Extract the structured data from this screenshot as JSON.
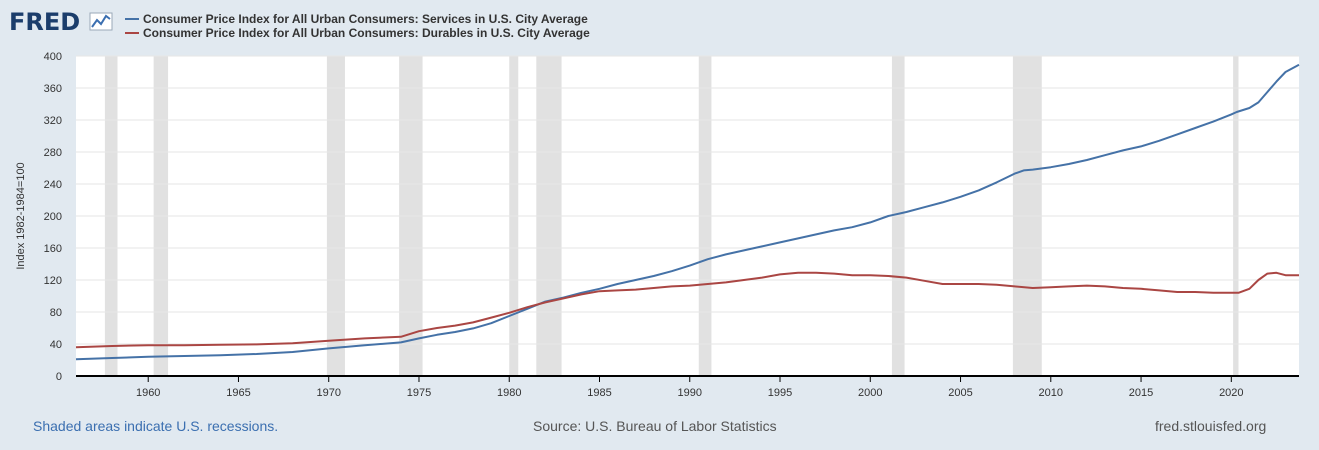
{
  "brand": {
    "name": "FRED",
    "chart_icon": "line-chart-icon"
  },
  "colors": {
    "background": "#e1e9f0",
    "plot_background": "#ffffff",
    "recession_band": "#e1e1e1",
    "gridline": "#e6e6e6",
    "series_services": "#4572a7",
    "series_durables": "#aa4643"
  },
  "footer": {
    "recession_note": "Shaded areas indicate U.S. recessions.",
    "source": "Source: U.S. Bureau of Labor Statistics",
    "url": "fred.stlouisfed.org"
  },
  "chart_data": {
    "type": "line",
    "title": "",
    "xlabel": "",
    "ylabel": "Index 1982-1984=100",
    "xlim": [
      1956,
      2023.75
    ],
    "ylim": [
      0,
      400
    ],
    "x_ticks": [
      1960,
      1965,
      1970,
      1975,
      1980,
      1985,
      1990,
      1995,
      2000,
      2005,
      2010,
      2015,
      2020
    ],
    "y_ticks": [
      0,
      40,
      80,
      120,
      160,
      200,
      240,
      280,
      320,
      360,
      400
    ],
    "grid": true,
    "legend_position": "top-left",
    "recessions": [
      [
        1957.6,
        1958.3
      ],
      [
        1960.3,
        1961.1
      ],
      [
        1969.9,
        1970.9
      ],
      [
        1973.9,
        1975.2
      ],
      [
        1980.0,
        1980.5
      ],
      [
        1981.5,
        1982.9
      ],
      [
        1990.5,
        1991.2
      ],
      [
        2001.2,
        2001.9
      ],
      [
        2007.9,
        2009.5
      ],
      [
        2020.1,
        2020.4
      ]
    ],
    "series": [
      {
        "name": "Consumer Price Index for All Urban Consumers: Services in U.S. City Average",
        "color": "#4572a7",
        "points": [
          [
            1956,
            21
          ],
          [
            1958,
            22.5
          ],
          [
            1960,
            24
          ],
          [
            1962,
            25
          ],
          [
            1964,
            26
          ],
          [
            1966,
            27.5
          ],
          [
            1968,
            30
          ],
          [
            1970,
            34.5
          ],
          [
            1972,
            38.5
          ],
          [
            1974,
            42
          ],
          [
            1975,
            47
          ],
          [
            1976,
            51.5
          ],
          [
            1977,
            55
          ],
          [
            1978,
            59.5
          ],
          [
            1979,
            66
          ],
          [
            1980,
            75
          ],
          [
            1981,
            84
          ],
          [
            1982,
            93
          ],
          [
            1983,
            98
          ],
          [
            1984,
            104
          ],
          [
            1985,
            109
          ],
          [
            1986,
            115
          ],
          [
            1987,
            120
          ],
          [
            1988,
            125
          ],
          [
            1989,
            131
          ],
          [
            1990,
            138
          ],
          [
            1991,
            146
          ],
          [
            1992,
            152
          ],
          [
            1993,
            157
          ],
          [
            1994,
            162
          ],
          [
            1995,
            167
          ],
          [
            1996,
            172
          ],
          [
            1997,
            177
          ],
          [
            1998,
            182
          ],
          [
            1999,
            186
          ],
          [
            2000,
            192
          ],
          [
            2001,
            200
          ],
          [
            2002,
            205
          ],
          [
            2003,
            211
          ],
          [
            2004,
            217
          ],
          [
            2005,
            224
          ],
          [
            2006,
            232
          ],
          [
            2007,
            242
          ],
          [
            2008,
            253
          ],
          [
            2008.5,
            257
          ],
          [
            2009,
            258
          ],
          [
            2010,
            261
          ],
          [
            2011,
            265
          ],
          [
            2012,
            270
          ],
          [
            2013,
            276
          ],
          [
            2014,
            282
          ],
          [
            2015,
            287
          ],
          [
            2016,
            294
          ],
          [
            2017,
            302
          ],
          [
            2018,
            310
          ],
          [
            2019,
            318
          ],
          [
            2020,
            327
          ],
          [
            2020.3,
            330
          ],
          [
            2021,
            335
          ],
          [
            2021.5,
            342
          ],
          [
            2022,
            355
          ],
          [
            2022.5,
            368
          ],
          [
            2023,
            380
          ],
          [
            2023.75,
            389
          ]
        ]
      },
      {
        "name": "Consumer Price Index for All Urban Consumers: Durables in U.S. City Average",
        "color": "#aa4643",
        "points": [
          [
            1956,
            36
          ],
          [
            1958,
            37.5
          ],
          [
            1960,
            38.5
          ],
          [
            1962,
            38.5
          ],
          [
            1964,
            39
          ],
          [
            1966,
            39.5
          ],
          [
            1968,
            41
          ],
          [
            1970,
            44
          ],
          [
            1972,
            47
          ],
          [
            1974,
            49
          ],
          [
            1975,
            56
          ],
          [
            1976,
            60
          ],
          [
            1977,
            63
          ],
          [
            1978,
            67
          ],
          [
            1979,
            73
          ],
          [
            1980,
            79
          ],
          [
            1981,
            86
          ],
          [
            1982,
            92
          ],
          [
            1983,
            97
          ],
          [
            1984,
            102
          ],
          [
            1985,
            106
          ],
          [
            1986,
            107
          ],
          [
            1987,
            108
          ],
          [
            1988,
            110
          ],
          [
            1989,
            112
          ],
          [
            1990,
            113
          ],
          [
            1991,
            115
          ],
          [
            1992,
            117
          ],
          [
            1993,
            120
          ],
          [
            1994,
            123
          ],
          [
            1995,
            127
          ],
          [
            1996,
            129
          ],
          [
            1997,
            129
          ],
          [
            1998,
            128
          ],
          [
            1999,
            126
          ],
          [
            2000,
            126
          ],
          [
            2001,
            125
          ],
          [
            2002,
            123
          ],
          [
            2003,
            119
          ],
          [
            2004,
            115
          ],
          [
            2005,
            115
          ],
          [
            2006,
            115
          ],
          [
            2007,
            114
          ],
          [
            2008,
            112
          ],
          [
            2009,
            110
          ],
          [
            2010,
            111
          ],
          [
            2011,
            112
          ],
          [
            2012,
            113
          ],
          [
            2013,
            112
          ],
          [
            2014,
            110
          ],
          [
            2015,
            109
          ],
          [
            2016,
            107
          ],
          [
            2017,
            105
          ],
          [
            2018,
            105
          ],
          [
            2019,
            104
          ],
          [
            2020,
            104
          ],
          [
            2020.4,
            104
          ],
          [
            2021,
            109
          ],
          [
            2021.5,
            120
          ],
          [
            2022,
            128
          ],
          [
            2022.5,
            129
          ],
          [
            2023,
            126
          ],
          [
            2023.75,
            126
          ]
        ]
      }
    ]
  }
}
